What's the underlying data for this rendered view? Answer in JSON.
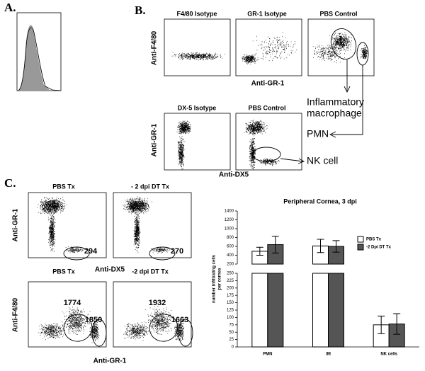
{
  "panels": {
    "a": {
      "label": "A."
    },
    "b": {
      "label": "B.",
      "plot_titles": [
        "F4/80 Isotype",
        "GR-1 Isotype",
        "PBS Control",
        "DX-5 Isotype",
        "PBS Control"
      ],
      "axis_labels": [
        "Anti-F4/80",
        "Anti-GR-1",
        "Anti-GR-1",
        "Anti-DX5"
      ],
      "annotations": [
        "Inflammatory",
        "macrophage",
        "PMN",
        "NK cell"
      ]
    },
    "c": {
      "label": "C.",
      "plot_titles": [
        "PBS Tx",
        "- 2 dpi DT Tx",
        "PBS Tx",
        "-2 dpi DT Tx"
      ],
      "axis_labels": [
        "Anti-GR-1",
        "Anti-DX5",
        "Anti-F4/80",
        "Anti-GR-1"
      ],
      "gate_counts": [
        294,
        270,
        1774,
        1850,
        1932,
        1663
      ]
    }
  },
  "chart_data": {
    "type": "bar",
    "title": "Peripheral Cornea, 3 dpi",
    "ylabel": [
      "number infiltrating cells",
      "per cornea"
    ],
    "categories": [
      "PMN",
      "IM",
      "NK cells"
    ],
    "series": [
      {
        "name": "PBS Tx",
        "color": "#ffffff",
        "values": [
          490,
          610,
          75
        ],
        "errors": [
          90,
          150,
          30
        ]
      },
      {
        "name": "-2 Dpi DT Tx",
        "color": "#555555",
        "values": [
          640,
          600,
          78
        ],
        "errors": [
          190,
          130,
          35
        ]
      }
    ],
    "y_segments": [
      {
        "ylim": [
          0,
          250
        ],
        "yticks": [
          0,
          25,
          50,
          75,
          100,
          125,
          150,
          175,
          200,
          225,
          250
        ]
      },
      {
        "ylim": [
          200,
          1400
        ],
        "yticks": [
          200,
          400,
          600,
          800,
          1000,
          1200,
          1400
        ]
      }
    ],
    "legend": "upper right"
  }
}
